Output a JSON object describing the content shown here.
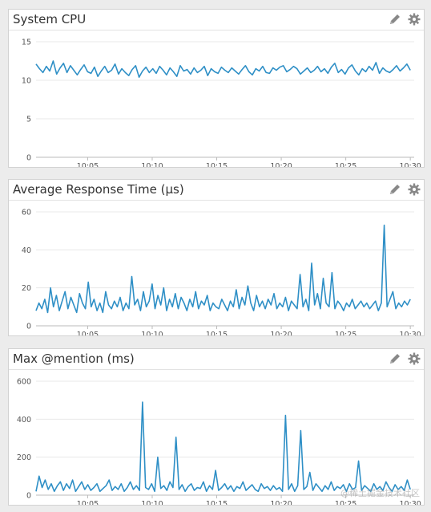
{
  "panels": [
    {
      "title": "System CPU",
      "tools": {
        "edit": "pencil-icon",
        "settings": "gear-icon"
      }
    },
    {
      "title": "Average Response Time (µs)",
      "tools": {
        "edit": "pencil-icon",
        "settings": "gear-icon"
      }
    },
    {
      "title": "Max @mention (ms)",
      "tools": {
        "edit": "pencil-icon",
        "settings": "gear-icon"
      }
    }
  ],
  "watermark": "@稀土掘金技术社区",
  "colors": {
    "series": "#2e8fc6",
    "grid": "#e8e8e8",
    "axis": "#bbbbbb"
  },
  "chart_data": [
    {
      "type": "line",
      "title": "System CPU",
      "xlim": [
        "10:01",
        "10:30"
      ],
      "xticks": [
        "10:05",
        "10:10",
        "10:15",
        "10:20",
        "10:25",
        "10:30"
      ],
      "yticks": [
        0,
        5,
        10,
        15
      ],
      "ylim": [
        0,
        15
      ],
      "grid": true,
      "series": [
        {
          "x_start": "10:01",
          "x_end": "10:30",
          "values": [
            12.1,
            11.5,
            11.0,
            11.8,
            11.2,
            12.5,
            10.8,
            11.6,
            12.2,
            11.0,
            11.9,
            11.3,
            10.7,
            11.4,
            12.0,
            11.1,
            10.9,
            11.7,
            10.5,
            11.2,
            11.8,
            11.0,
            11.3,
            12.1,
            10.8,
            11.5,
            11.0,
            10.6,
            11.4,
            11.9,
            10.4,
            11.2,
            11.7,
            11.0,
            11.5,
            10.9,
            11.8,
            11.3,
            10.7,
            11.6,
            11.1,
            10.5,
            11.9,
            11.2,
            11.4,
            10.8,
            11.6,
            11.0,
            11.3,
            11.8,
            10.6,
            11.5,
            11.1,
            10.9,
            11.7,
            11.3,
            11.0,
            11.6,
            11.2,
            10.8,
            11.4,
            11.9,
            11.1,
            10.7,
            11.5,
            11.2,
            11.8,
            11.0,
            10.9,
            11.6,
            11.3,
            11.7,
            11.9,
            11.1,
            11.4,
            11.8,
            11.5,
            10.8,
            11.2,
            11.6,
            11.0,
            11.3,
            11.8,
            11.1,
            11.5,
            10.9,
            11.7,
            12.2,
            11.0,
            11.4,
            10.8,
            11.6,
            12.0,
            11.2,
            10.7,
            11.5,
            11.1,
            11.8,
            11.3,
            12.3,
            10.9,
            11.6,
            11.2,
            11.0,
            11.4,
            11.9,
            11.2,
            11.6,
            12.1,
            11.3
          ]
        }
      ]
    },
    {
      "type": "line",
      "title": "Average Response Time (µs)",
      "xlim": [
        "10:01",
        "10:30"
      ],
      "xticks": [
        "10:05",
        "10:10",
        "10:15",
        "10:20",
        "10:25",
        "10:30"
      ],
      "yticks": [
        0,
        20,
        40,
        60
      ],
      "ylim": [
        0,
        60
      ],
      "grid": true,
      "series": [
        {
          "x_start": "10:01",
          "x_end": "10:30",
          "values": [
            8,
            12,
            9,
            14,
            7,
            20,
            10,
            16,
            8,
            13,
            18,
            9,
            15,
            11,
            7,
            17,
            12,
            9,
            23,
            10,
            14,
            8,
            12,
            7,
            18,
            11,
            9,
            13,
            10,
            15,
            8,
            12,
            9,
            26,
            11,
            14,
            8,
            18,
            10,
            13,
            22,
            9,
            16,
            11,
            20,
            8,
            14,
            10,
            17,
            9,
            15,
            12,
            8,
            14,
            10,
            18,
            9,
            13,
            11,
            16,
            8,
            12,
            10,
            9,
            14,
            11,
            8,
            13,
            10,
            19,
            9,
            15,
            11,
            21,
            12,
            8,
            16,
            10,
            13,
            9,
            14,
            11,
            17,
            9,
            12,
            10,
            15,
            8,
            13,
            11,
            9,
            27,
            10,
            14,
            8,
            33,
            11,
            17,
            9,
            25,
            12,
            10,
            28,
            9,
            13,
            11,
            8,
            12,
            10,
            14,
            9,
            11,
            13,
            10,
            12,
            9,
            11,
            13,
            8,
            12,
            53,
            10,
            14,
            18,
            9,
            12,
            10,
            13,
            11,
            14
          ]
        }
      ]
    },
    {
      "type": "line",
      "title": "Max @mention (ms)",
      "xlim": [
        "10:01",
        "10:30"
      ],
      "xticks": [
        "10:05",
        "10:10",
        "10:15",
        "10:20",
        "10:25",
        "10:30"
      ],
      "yticks": [
        0,
        200,
        400,
        600
      ],
      "ylim": [
        0,
        600
      ],
      "grid": true,
      "series": [
        {
          "x_start": "10:01",
          "x_end": "10:30",
          "values": [
            20,
            100,
            40,
            80,
            30,
            60,
            20,
            50,
            70,
            25,
            60,
            35,
            80,
            20,
            45,
            70,
            30,
            55,
            25,
            40,
            60,
            20,
            35,
            50,
            80,
            25,
            45,
            30,
            60,
            20,
            40,
            70,
            30,
            50,
            25,
            490,
            40,
            30,
            60,
            20,
            200,
            35,
            50,
            25,
            70,
            40,
            305,
            30,
            55,
            20,
            45,
            60,
            25,
            40,
            35,
            70,
            20,
            50,
            30,
            130,
            25,
            40,
            60,
            30,
            50,
            20,
            45,
            35,
            70,
            25,
            40,
            55,
            30,
            20,
            60,
            35,
            45,
            25,
            50,
            30,
            40,
            20,
            420,
            30,
            60,
            20,
            50,
            340,
            30,
            45,
            120,
            25,
            60,
            40,
            20,
            50,
            30,
            70,
            25,
            45,
            35,
            55,
            20,
            60,
            30,
            40,
            180,
            25,
            50,
            35,
            20,
            60,
            30,
            45,
            25,
            70,
            40,
            20,
            55,
            30,
            45,
            25,
            80,
            30
          ]
        }
      ]
    }
  ]
}
